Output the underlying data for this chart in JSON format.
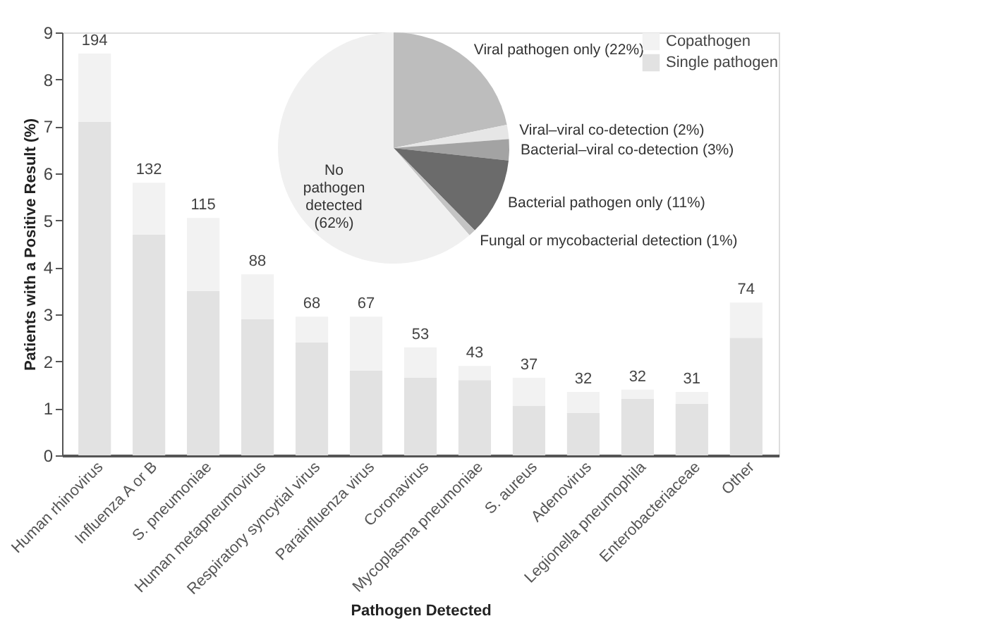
{
  "chart_data": [
    {
      "type": "bar",
      "stacked": true,
      "xlabel": "Pathogen Detected",
      "ylabel": "Patients with a Positive Result (%)",
      "categories": [
        "Human rhinovirus",
        "Influenza A or B",
        "S. pneumoniae",
        "Human metapneumovirus",
        "Respiratory syncytial virus",
        "Parainfluenza virus",
        "Coronavirus",
        "Mycoplasma pneumoniae",
        "S. aureus",
        "Adenovirus",
        "Legionella pneumophila",
        "Enterobacteriaceae",
        "Other"
      ],
      "series": [
        {
          "name": "Single pathogen",
          "color": "#e2e2e2",
          "values": [
            7.1,
            4.7,
            3.5,
            2.9,
            2.4,
            1.8,
            1.65,
            1.6,
            1.05,
            0.9,
            1.2,
            1.1,
            2.5
          ]
        },
        {
          "name": "Copathogen",
          "color": "#f2f2f2",
          "values": [
            1.45,
            1.1,
            1.55,
            0.95,
            0.55,
            1.15,
            0.65,
            0.3,
            0.6,
            0.45,
            0.2,
            0.25,
            0.75
          ]
        }
      ],
      "annotations": [
        {
          "text": "194",
          "x": "Human rhinovirus",
          "y": 8.55
        },
        {
          "text": "132",
          "x": "Influenza A or B",
          "y": 5.8
        },
        {
          "text": "115",
          "x": "S. pneumoniae",
          "y": 5.05
        },
        {
          "text": "88",
          "x": "Human metapneumovirus",
          "y": 3.85
        },
        {
          "text": "68",
          "x": "Respiratory syncytial virus",
          "y": 2.95
        },
        {
          "text": "67",
          "x": "Parainfluenza virus",
          "y": 2.95
        },
        {
          "text": "53",
          "x": "Coronavirus",
          "y": 2.3
        },
        {
          "text": "43",
          "x": "Mycoplasma pneumoniae",
          "y": 1.9
        },
        {
          "text": "37",
          "x": "S. aureus",
          "y": 1.65
        },
        {
          "text": "32",
          "x": "Adenovirus",
          "y": 1.35
        },
        {
          "text": "32",
          "x": "Legionella pneumophila",
          "y": 1.4
        },
        {
          "text": "31",
          "x": "Enterobacteriaceae",
          "y": 1.35
        },
        {
          "text": "74",
          "x": "Other",
          "y": 3.25
        }
      ],
      "ylim": [
        0,
        9
      ],
      "yticks": [
        0,
        1,
        2,
        3,
        4,
        5,
        6,
        7,
        8,
        9
      ],
      "grid": false,
      "legend": "top right"
    },
    {
      "type": "pie",
      "categories": [
        "Viral pathogen only (22%)",
        "Viral–viral co-detection (2%)",
        "Bacterial–viral co-detection (3%)",
        "Bacterial pathogen only (11%)",
        "Fungal or mycobacterial detection (1%)",
        "No pathogen detected (62%)"
      ],
      "values": [
        22,
        2,
        3,
        11,
        1,
        62
      ],
      "colors": [
        "#bdbdbd",
        "#e6e6e6",
        "#a3a3a3",
        "#6b6b6b",
        "#c4c4c4",
        "#f0f0f0"
      ]
    }
  ]
}
